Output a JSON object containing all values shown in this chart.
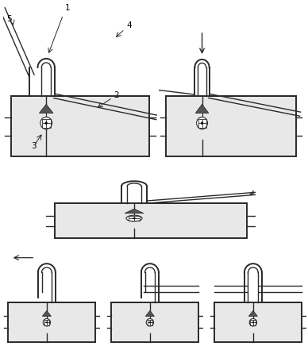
{
  "figsize": [
    3.88,
    4.46
  ],
  "dpi": 100,
  "lc": "#2a2a2a",
  "lw": 1.0,
  "lw_thick": 1.4,
  "box_fc": "#e8e8e8",
  "box_ec": "#2a2a2a"
}
